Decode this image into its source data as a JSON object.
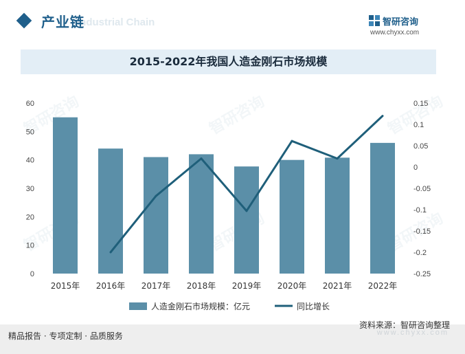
{
  "header": {
    "section_title": "产业链",
    "section_ghost": "Industrial Chain",
    "logo_name": "智研咨询",
    "logo_url": "www.chyxx.com"
  },
  "chart_data": {
    "type": "bar",
    "title": "2015-2022年我国人造金刚石市场规模",
    "categories": [
      "2015年",
      "2016年",
      "2017年",
      "2018年",
      "2019年",
      "2020年",
      "2021年",
      "2022年"
    ],
    "series": [
      {
        "name": "人造金刚石市场规模：亿元",
        "type": "bar",
        "axis": "left",
        "color": "#5b8fa8",
        "values": [
          55,
          44,
          41,
          42,
          37.7,
          40,
          40.8,
          46
        ]
      },
      {
        "name": "同比增长",
        "type": "line",
        "axis": "right",
        "color": "#1f5f7a",
        "values": [
          null,
          -0.2,
          -0.068,
          0.02,
          -0.103,
          0.061,
          0.02,
          0.12
        ]
      }
    ],
    "y_left": {
      "min": 0,
      "max": 60,
      "ticks": [
        "0",
        "10",
        "20",
        "30",
        "40",
        "50",
        "60"
      ]
    },
    "y_right": {
      "min": -0.25,
      "max": 0.15,
      "ticks": [
        "0.15",
        "0.1",
        "0.05",
        "0",
        "-0.05",
        "-0.1",
        "-0.15",
        "-0.2",
        "-0.25"
      ]
    },
    "grid": false,
    "legend_position": "bottom"
  },
  "footer": {
    "left": "精品报告 · 专项定制 · 品质服务",
    "source": "资料来源：智研咨询整理",
    "ghost_url": "www.chyxx.com"
  }
}
